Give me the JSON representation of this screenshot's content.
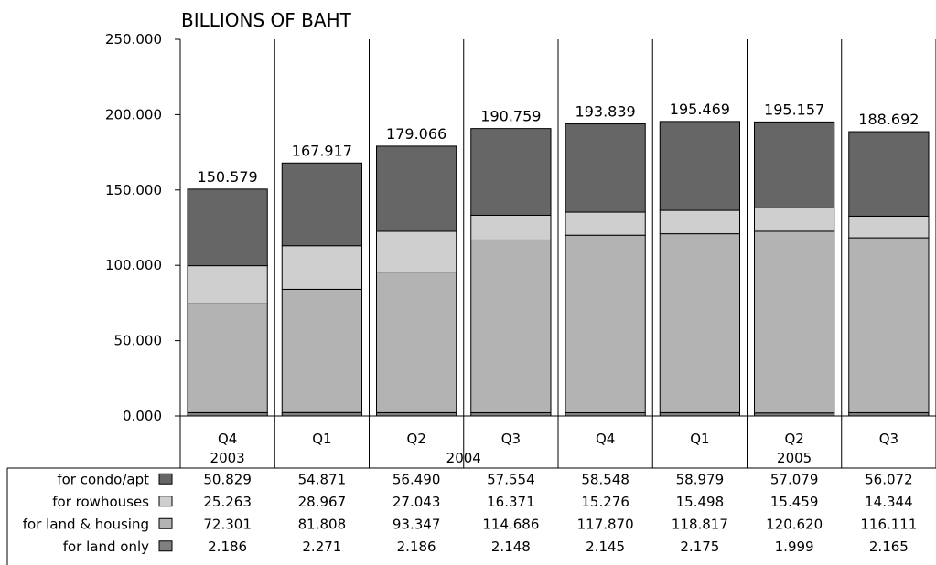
{
  "chart_data": {
    "type": "bar",
    "stacked": true,
    "title": "BILLIONS OF BAHT",
    "ylim": [
      0,
      250
    ],
    "y_ticks": [
      "0.000",
      "50.000",
      "100.000",
      "150.000",
      "200.000",
      "250.000"
    ],
    "grid": "vertical lines only",
    "categories": [
      "Q4",
      "Q1",
      "Q2",
      "Q3",
      "Q4",
      "Q1",
      "Q2",
      "Q3"
    ],
    "year_groups": [
      {
        "label": "2003",
        "span": 1
      },
      {
        "label": "2004",
        "span": 4
      },
      {
        "label": "2005",
        "span": 3
      }
    ],
    "totals": [
      "150.579",
      "167.917",
      "179.066",
      "190.759",
      "193.839",
      "195.469",
      "195.157",
      "188.692"
    ],
    "series": [
      {
        "name": "for condo/apt",
        "color": "#666666",
        "values": [
          50.829,
          54.871,
          56.49,
          57.554,
          58.548,
          58.979,
          57.079,
          56.072
        ],
        "labels": [
          "50.829",
          "54.871",
          "56.490",
          "57.554",
          "58.548",
          "58.979",
          "57.079",
          "56.072"
        ]
      },
      {
        "name": "for  rowhouses",
        "color": "#cfcfcf",
        "values": [
          25.263,
          28.967,
          27.043,
          16.371,
          15.276,
          15.498,
          15.459,
          14.344
        ],
        "labels": [
          "25.263",
          "28.967",
          "27.043",
          "16.371",
          "15.276",
          "15.498",
          "15.459",
          "14.344"
        ]
      },
      {
        "name": "for land & housing",
        "color": "#b3b3b3",
        "values": [
          72.301,
          81.808,
          93.347,
          114.686,
          117.87,
          118.817,
          120.62,
          116.111
        ],
        "labels": [
          "72.301",
          "81.808",
          "93.347",
          "114.686",
          "117.870",
          "118.817",
          "120.620",
          "116.111"
        ]
      },
      {
        "name": "for land only",
        "color": "#808080",
        "values": [
          2.186,
          2.271,
          2.186,
          2.148,
          2.145,
          2.175,
          1.999,
          2.165
        ],
        "labels": [
          "2.186",
          "2.271",
          "2.186",
          "2.148",
          "2.145",
          "2.175",
          "1.999",
          "2.165"
        ]
      }
    ]
  }
}
